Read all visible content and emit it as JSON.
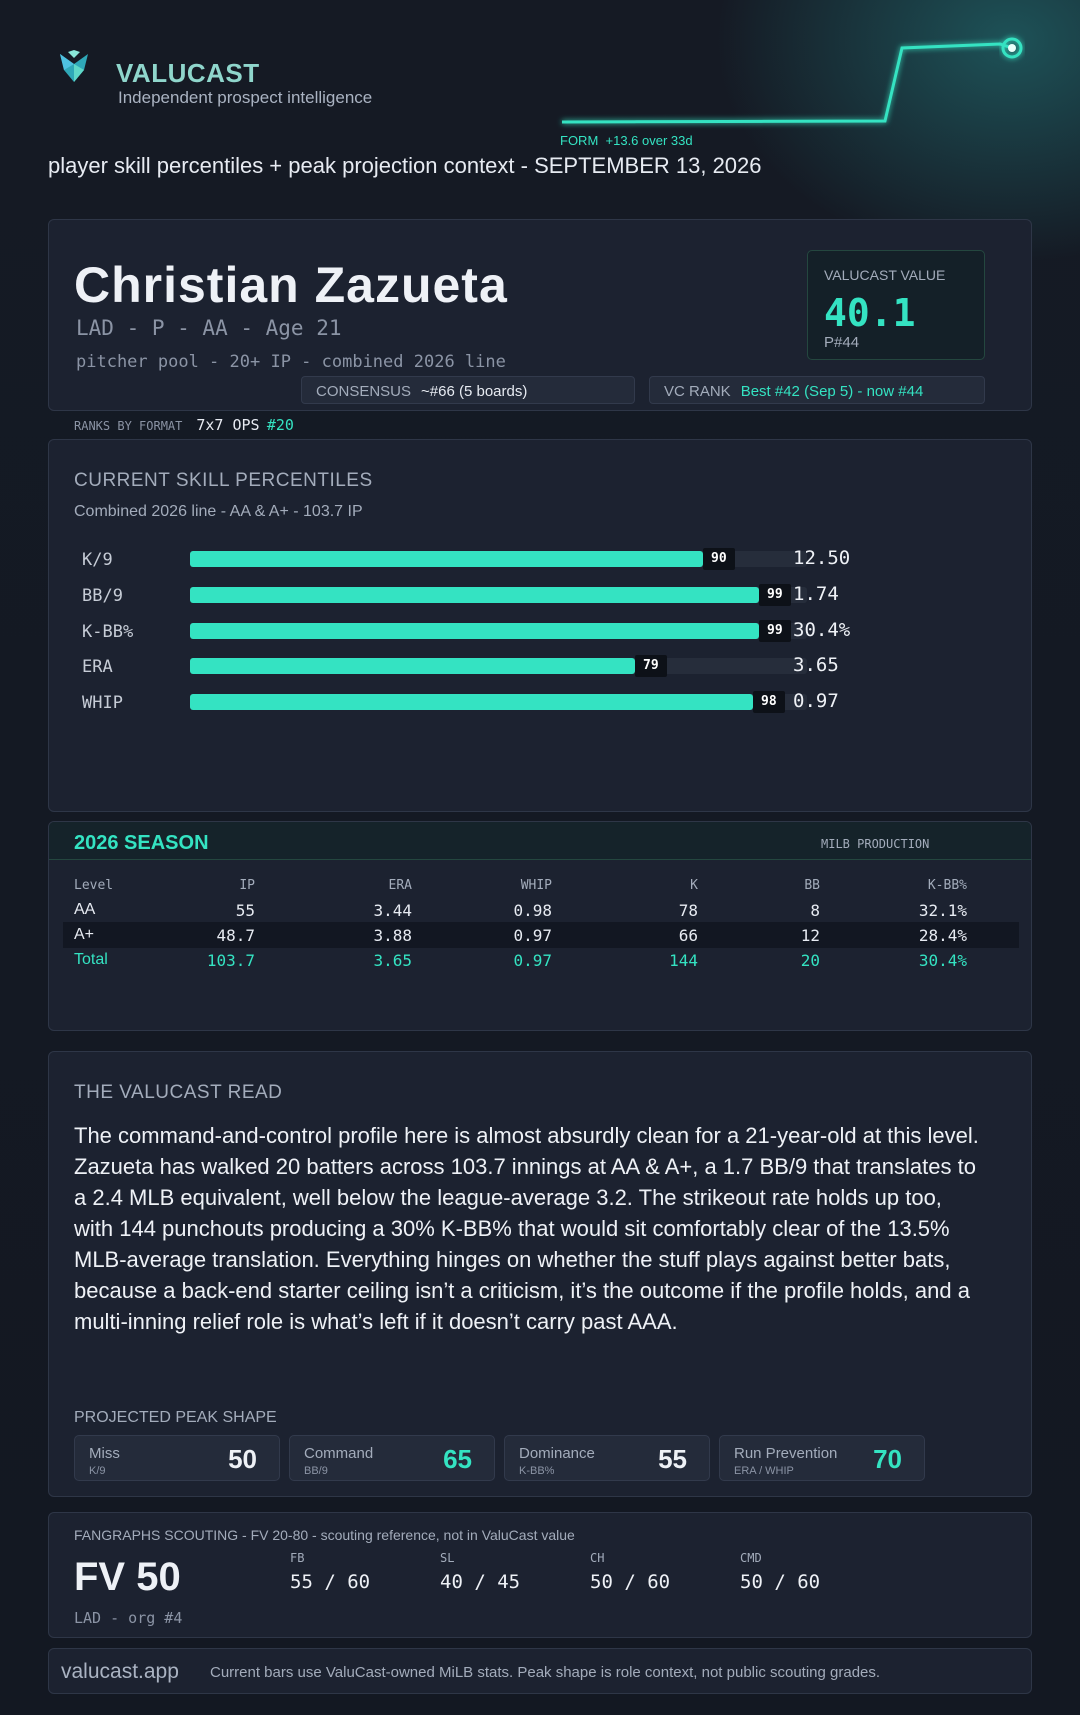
{
  "brand": {
    "name": "VALUCAST",
    "tagline": "Independent prospect intelligence",
    "logo_icon": "valucast-logo-icon"
  },
  "form": {
    "label": "FORM",
    "change": "+13.6 over 33d",
    "color": "#34e3c2"
  },
  "subtitle": "player skill percentiles + peak projection context - SEPTEMBER 13, 2026",
  "player": {
    "name": "Christian Zazueta",
    "meta": "LAD - P - AA - Age 21",
    "pool": "pitcher pool - 20+ IP - combined 2026 line",
    "value_label": "VALUCAST VALUE",
    "value": "40.1",
    "position_rank": "P#44",
    "consensus_label": "CONSENSUS",
    "consensus_value": "~#66 (5 boards)",
    "vc_rank_label": "VC RANK",
    "vc_rank_value": "Best #42 (Sep 5) - now #44"
  },
  "ranks_by_format": {
    "label": "RANKS BY FORMAT",
    "format": "7x7 OPS",
    "rank": "#20"
  },
  "skills": {
    "title": "CURRENT SKILL PERCENTILES",
    "subtitle": "Combined 2026 line - AA & A+ - 103.7 IP",
    "rows": [
      {
        "label": "K/9",
        "percentile": 90,
        "value": "12.50"
      },
      {
        "label": "BB/9",
        "percentile": 99,
        "value": "1.74"
      },
      {
        "label": "K-BB%",
        "percentile": 99,
        "value": "30.4%"
      },
      {
        "label": "ERA",
        "percentile": 79,
        "value": "3.65"
      },
      {
        "label": "WHIP",
        "percentile": 98,
        "value": "0.97"
      }
    ]
  },
  "season": {
    "title": "2026 SEASON",
    "tag": "MILB PRODUCTION",
    "columns": [
      "Level",
      "IP",
      "ERA",
      "WHIP",
      "K",
      "BB",
      "K-BB%"
    ],
    "rows": [
      [
        "AA",
        "55",
        "3.44",
        "0.98",
        "78",
        "8",
        "32.1%"
      ],
      [
        "A+",
        "48.7",
        "3.88",
        "0.97",
        "66",
        "12",
        "28.4%"
      ]
    ],
    "total": [
      "Total",
      "103.7",
      "3.65",
      "0.97",
      "144",
      "20",
      "30.4%"
    ]
  },
  "read": {
    "title": "THE VALUCAST READ",
    "body": "The command-and-control profile here is almost absurdly clean for a 21-year-old at this level. Zazueta has walked 20 batters across 103.7 innings at AA & A+, a 1.7 BB/9 that translates to a 2.4 MLB equivalent, well below the league-average 3.2. The strikeout rate holds up too, with 144 punchouts producing a 30% K-BB% that would sit comfortably clear of the 13.5% MLB-average translation. Everything hinges on whether the stuff plays against better bats, because a back-end starter ceiling isn’t a criticism, it’s the outcome if the profile holds, and a multi-inning relief role is what’s left if it doesn’t carry past AAA.",
    "peak_title": "PROJECTED PEAK SHAPE",
    "peak": [
      {
        "name": "Miss",
        "sub": "K/9",
        "value": "50",
        "highlight": false
      },
      {
        "name": "Command",
        "sub": "BB/9",
        "value": "65",
        "highlight": true
      },
      {
        "name": "Dominance",
        "sub": "K-BB%",
        "value": "55",
        "highlight": false
      },
      {
        "name": "Run Prevention",
        "sub": "ERA / WHIP",
        "value": "70",
        "highlight": true
      }
    ]
  },
  "fangraphs": {
    "title": "FANGRAPHS SCOUTING - FV 20-80 - scouting reference, not in ValuCast value",
    "fv": "FV 50",
    "org": "LAD - org #4",
    "grades": [
      {
        "label": "FB",
        "value": "55 / 60"
      },
      {
        "label": "SL",
        "value": "40 / 45"
      },
      {
        "label": "CH",
        "value": "50 / 60"
      },
      {
        "label": "CMD",
        "value": "50 / 60"
      }
    ]
  },
  "footer": {
    "site": "valucast.app",
    "note": "Current bars use ValuCast-owned MiLB stats. Peak shape is role context, not public scouting grades."
  }
}
